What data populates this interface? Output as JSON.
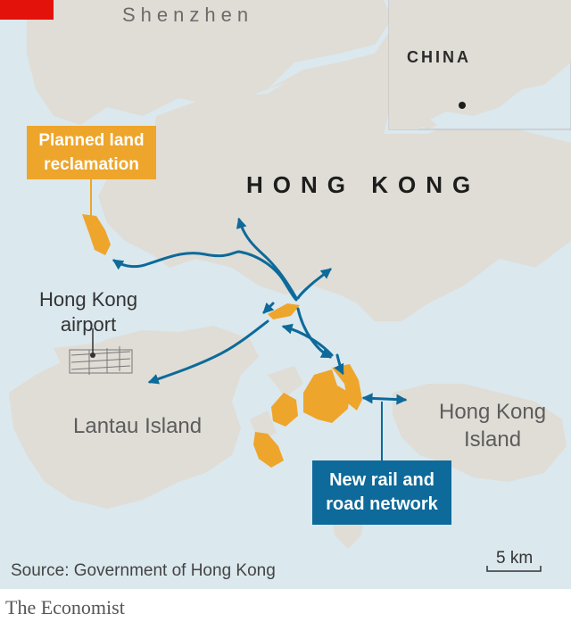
{
  "labels": {
    "shenzhen": "Shenzhen",
    "hong_kong": "HONG KONG",
    "china": "CHINA",
    "lantau": "Lantau Island",
    "hk_island_line1": "Hong Kong",
    "hk_island_line2": "Island",
    "airport_line1": "Hong Kong",
    "airport_line2": "airport"
  },
  "callouts": {
    "reclamation_line1": "Planned land",
    "reclamation_line2": "reclamation",
    "network_line1": "New rail and",
    "network_line2": "road network"
  },
  "footer": {
    "source": "Source: Government of Hong Kong",
    "scale": "5 km",
    "brand": "The Economist"
  },
  "colors": {
    "sea": "#dbe8ee",
    "land": "#e0ddd6",
    "reclamation": "#eea52b",
    "network": "#0d6a9a",
    "brand_red": "#e3120b"
  }
}
